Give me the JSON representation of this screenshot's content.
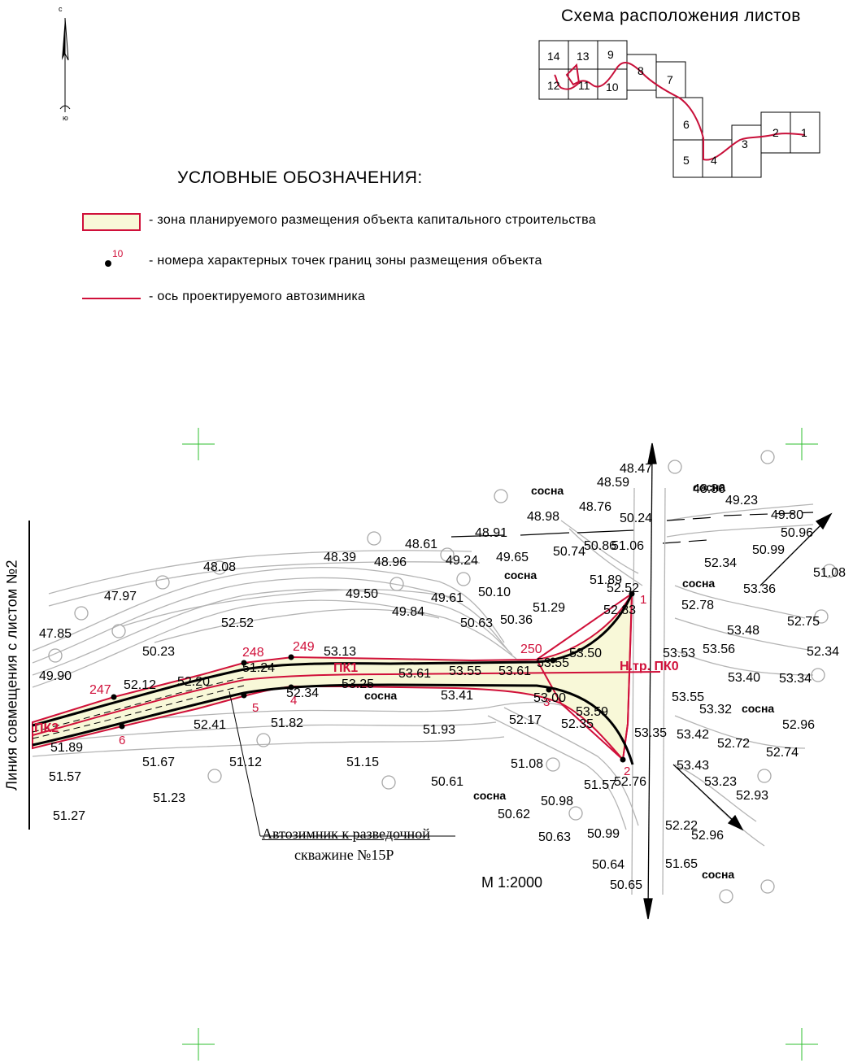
{
  "sheet_scheme": {
    "title": "Схема расположения листов",
    "sheet_numbers": [
      "14",
      "13",
      "9",
      "12",
      "11",
      "10",
      "8",
      "7",
      "6",
      "5",
      "4",
      "3",
      "2",
      "1"
    ]
  },
  "north": {
    "north_letter": "с",
    "south_letter": "ю"
  },
  "legend": {
    "title": "УСЛОВНЫЕ ОБОЗНАЧЕНИЯ:",
    "zone_label": "- зона планируемого размещения объекта капитального строительства",
    "point_number_sample": "10",
    "point_label": "- номера характерных точек границ зоны размещения объекта",
    "axis_label": "- ось проектируемого автозимника"
  },
  "map": {
    "match_line_label": "Линия совмещения с листом №2",
    "road_caption_line1": "Автозимник к разведочной",
    "road_caption_line2": "скважине №15Р",
    "scale": "М 1:2000",
    "picket_labels": [
      "ПК2",
      "ПК1",
      "Н.тр. ПК0"
    ],
    "chainage_labels": [
      "247",
      "248",
      "249",
      "250"
    ],
    "boundary_point_numbers": [
      "1",
      "2",
      "3",
      "4",
      "5",
      "6"
    ],
    "vegetation_label": "сосна",
    "elevations": [
      "47.85",
      "47.97",
      "48.08",
      "48.39",
      "48.96",
      "48.61",
      "48.91",
      "48.98",
      "48.76",
      "48.59",
      "48.47",
      "49.90",
      "50.23",
      "52.52",
      "49.50",
      "49.84",
      "49.61",
      "49.24",
      "49.65",
      "50.10",
      "50.63",
      "50.36",
      "50.74",
      "50.86",
      "51.06",
      "50.24",
      "51.29",
      "51.89",
      "52.52",
      "52.83",
      "52.12",
      "52.20",
      "51.24",
      "53.13",
      "53.25",
      "53.61",
      "53.55",
      "53.61",
      "53.55",
      "53.50",
      "53.00",
      "53.41",
      "52.34",
      "51.89",
      "51.57",
      "51.27",
      "51.67",
      "51.23",
      "51.12",
      "52.41",
      "51.82",
      "51.15",
      "51.93",
      "52.17",
      "52.35",
      "53.59",
      "53.35",
      "51.08",
      "50.61",
      "50.62",
      "50.98",
      "51.57",
      "52.76",
      "50.63",
      "50.99",
      "50.64",
      "50.65",
      "48.86",
      "49.23",
      "49.80",
      "50.96",
      "50.99",
      "51.08",
      "52.34",
      "52.78",
      "53.36",
      "53.48",
      "53.56",
      "53.53",
      "52.75",
      "52.34",
      "53.40",
      "53.34",
      "53.55",
      "53.32",
      "52.96",
      "53.42",
      "52.72",
      "52.74",
      "53.43",
      "53.23",
      "52.93",
      "52.22",
      "52.96",
      "51.65"
    ]
  },
  "colors": {
    "zone_fill": "#f8f8d8",
    "zone_border": "#d0103a",
    "axis": "#d0103a",
    "contour": "#b4b4b4",
    "grid": "#2fbf2f"
  }
}
